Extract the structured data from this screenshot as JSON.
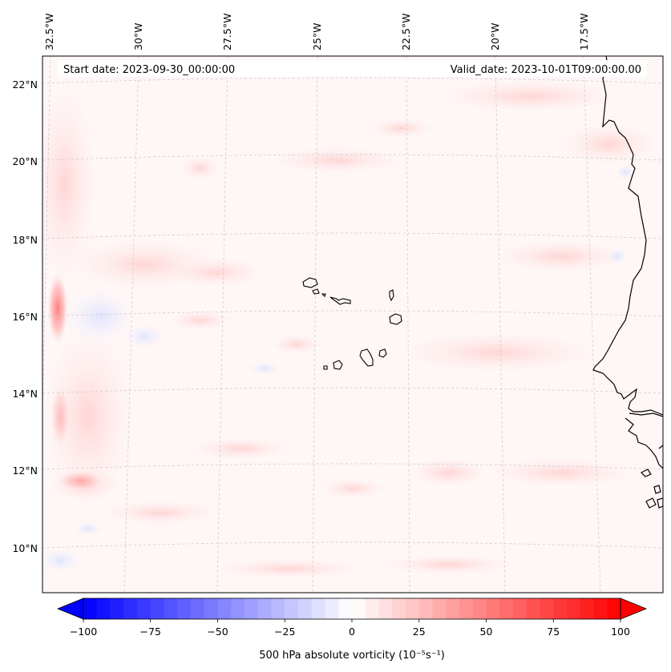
{
  "map": {
    "annotations": {
      "start_date": "Start date: 2023-09-30_00:00:00",
      "valid_date": "Valid_date: 2023-10-01T09:00:00.00"
    },
    "lon_labels": [
      "32.5°W",
      "30°W",
      "27.5°W",
      "25°W",
      "22.5°W",
      "20°W",
      "17.5°W"
    ],
    "lat_labels": [
      "22°N",
      "20°N",
      "18°N",
      "16°N",
      "14°N",
      "12°N",
      "10°N"
    ],
    "gridlines": true,
    "features": [
      "Cabo Verde islands",
      "West African coastline"
    ],
    "field": "500 hPa absolute vorticity",
    "colors": {
      "negative": "#0000ff",
      "zero": "#ffffff",
      "positive": "#ff0000",
      "coastline": "#000000"
    }
  },
  "colorbar": {
    "ticks": [
      "−100",
      "−75",
      "−50",
      "−25",
      "0",
      "25",
      "50",
      "75",
      "100"
    ],
    "min": -100,
    "max": 100,
    "step": 5,
    "label": "500 hPa absolute vorticity (10⁻⁵s⁻¹)",
    "cmap": "bwr",
    "extend": "both"
  }
}
